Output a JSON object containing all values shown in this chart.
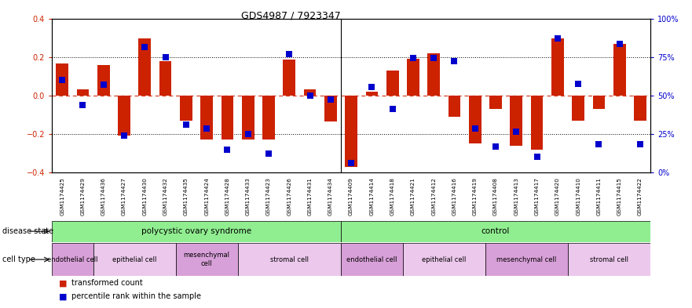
{
  "title": "GDS4987 / 7923347",
  "samples": [
    "GSM1174425",
    "GSM1174429",
    "GSM1174436",
    "GSM1174427",
    "GSM1174430",
    "GSM1174432",
    "GSM1174435",
    "GSM1174424",
    "GSM1174428",
    "GSM1174433",
    "GSM1174423",
    "GSM1174426",
    "GSM1174431",
    "GSM1174434",
    "GSM1174409",
    "GSM1174414",
    "GSM1174418",
    "GSM1174421",
    "GSM1174412",
    "GSM1174416",
    "GSM1174419",
    "GSM1174408",
    "GSM1174413",
    "GSM1174417",
    "GSM1174420",
    "GSM1174410",
    "GSM1174411",
    "GSM1174415",
    "GSM1174422"
  ],
  "red_values": [
    0.165,
    0.03,
    0.16,
    -0.21,
    0.295,
    0.18,
    -0.13,
    -0.23,
    -0.23,
    -0.23,
    -0.23,
    0.185,
    0.03,
    -0.135,
    -0.37,
    0.02,
    0.13,
    0.19,
    0.22,
    -0.11,
    -0.25,
    -0.07,
    -0.26,
    -0.28,
    0.295,
    -0.13,
    -0.07,
    0.27,
    -0.13
  ],
  "blue_values": [
    0.08,
    -0.05,
    0.055,
    -0.21,
    0.25,
    0.2,
    -0.15,
    -0.17,
    -0.28,
    -0.2,
    -0.3,
    0.215,
    0.0,
    -0.02,
    -0.35,
    0.045,
    -0.07,
    0.195,
    0.195,
    0.18,
    -0.17,
    -0.265,
    -0.19,
    -0.32,
    0.295,
    0.06,
    -0.255,
    0.27,
    -0.255
  ],
  "disease_state_groups": [
    {
      "label": "polycystic ovary syndrome",
      "start": 0,
      "end": 14,
      "color": "#90ee90"
    },
    {
      "label": "control",
      "start": 14,
      "end": 29,
      "color": "#90ee90"
    }
  ],
  "cell_type_groups": [
    {
      "label": "endothelial cell",
      "start": 0,
      "end": 2,
      "color": "#d8a0d8"
    },
    {
      "label": "epithelial cell",
      "start": 2,
      "end": 6,
      "color": "#ecc8ec"
    },
    {
      "label": "mesenchymal\ncell",
      "start": 6,
      "end": 9,
      "color": "#d8a0d8"
    },
    {
      "label": "stromal cell",
      "start": 9,
      "end": 14,
      "color": "#ecc8ec"
    },
    {
      "label": "endothelial cell",
      "start": 14,
      "end": 17,
      "color": "#d8a0d8"
    },
    {
      "label": "epithelial cell",
      "start": 17,
      "end": 21,
      "color": "#ecc8ec"
    },
    {
      "label": "mesenchymal cell",
      "start": 21,
      "end": 25,
      "color": "#d8a0d8"
    },
    {
      "label": "stromal cell",
      "start": 25,
      "end": 29,
      "color": "#ecc8ec"
    }
  ],
  "ylim": [
    -0.4,
    0.4
  ],
  "yticks_left": [
    -0.4,
    -0.2,
    0.0,
    0.2,
    0.4
  ],
  "yticks_right": [
    0,
    25,
    50,
    75,
    100
  ],
  "red_color": "#cc2200",
  "blue_color": "#0000cc",
  "bar_width": 0.6,
  "blue_marker_size": 5.5
}
